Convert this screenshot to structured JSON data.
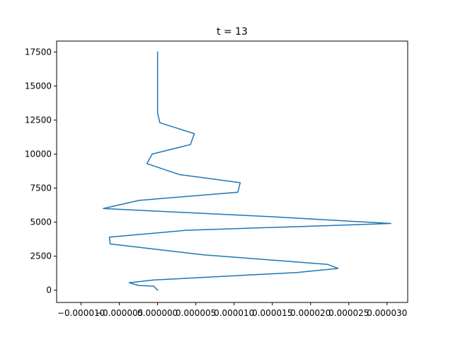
{
  "chart_data": {
    "type": "line",
    "title": "t = 13",
    "xlabel": "",
    "ylabel": "",
    "xlim": [
      -1.32e-05,
      3.27e-05
    ],
    "ylim": [
      -900,
      18300
    ],
    "xticks": [
      -1e-05,
      -5e-06,
      0.0,
      5e-06,
      1e-05,
      1.5e-05,
      2e-05,
      2.5e-05,
      3e-05
    ],
    "xtick_labels": [
      "−0.000010",
      "−0.000005",
      "0.000000",
      "0.000005",
      "0.000010",
      "0.000015",
      "0.000020",
      "0.000025",
      "0.000030"
    ],
    "yticks": [
      0,
      2500,
      5000,
      7500,
      10000,
      12500,
      15000,
      17500
    ],
    "ytick_labels": [
      "0",
      "2500",
      "5000",
      "7500",
      "10000",
      "12500",
      "15000",
      "17500"
    ],
    "grid": false,
    "series": [
      {
        "color": "#1f77b4",
        "x": [
          0.0,
          -5e-07,
          -2.5e-06,
          -3.7e-06,
          -5e-07,
          1.82e-05,
          2.36e-05,
          2.22e-05,
          6e-06,
          -6.2e-06,
          -6.3e-06,
          3.7e-06,
          3.05e-05,
          1.48e-05,
          -7.1e-06,
          -2.4e-06,
          1.05e-05,
          1.08e-05,
          2.8e-06,
          -1.4e-06,
          -7e-07,
          4.3e-06,
          4.8e-06,
          3e-07,
          0.0,
          0.0,
          0.0,
          0.0
        ],
        "y": [
          0,
          300,
          350,
          550,
          750,
          1300,
          1600,
          1900,
          2600,
          3400,
          3900,
          4400,
          4900,
          5400,
          6000,
          6600,
          7200,
          7900,
          8500,
          9300,
          10000,
          10700,
          11500,
          12300,
          13000,
          14500,
          16000,
          17500
        ]
      }
    ]
  }
}
